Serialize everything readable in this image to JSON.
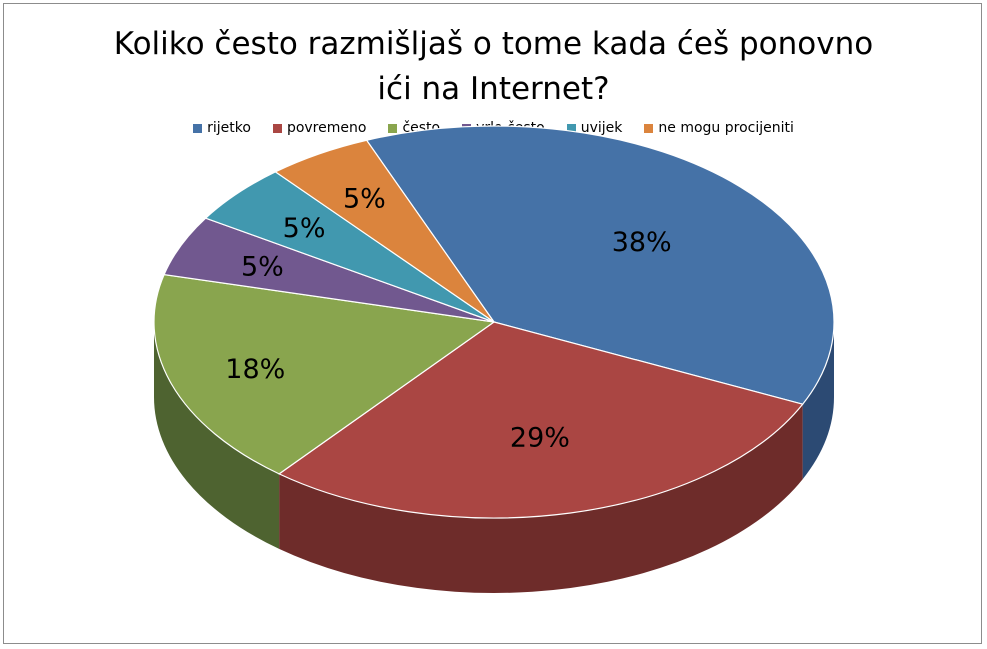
{
  "chart_data": {
    "type": "pie",
    "title_lines": [
      "Koliko često razmišljaš o tome kada ćeš ponovno",
      "ići na Internet?"
    ],
    "legend_position": "top",
    "categories": [
      "rijetko",
      "povremeno",
      "često",
      "vrlo često",
      "uvijek",
      "ne mogu procijeniti"
    ],
    "values": [
      38,
      29,
      18,
      5,
      5,
      5
    ],
    "data_labels": [
      "38%",
      "29%",
      "18%",
      "5%",
      "5%",
      "5%"
    ],
    "colors": [
      "#4572A7",
      "#AA4643",
      "#89A54E",
      "#71588F",
      "#4198AF",
      "#DB843D"
    ],
    "side_colors": [
      "#2C4A73",
      "#6E2C2A",
      "#4E6330",
      "#3A2E52",
      "#1F5666",
      "#7E4A1E"
    ]
  }
}
